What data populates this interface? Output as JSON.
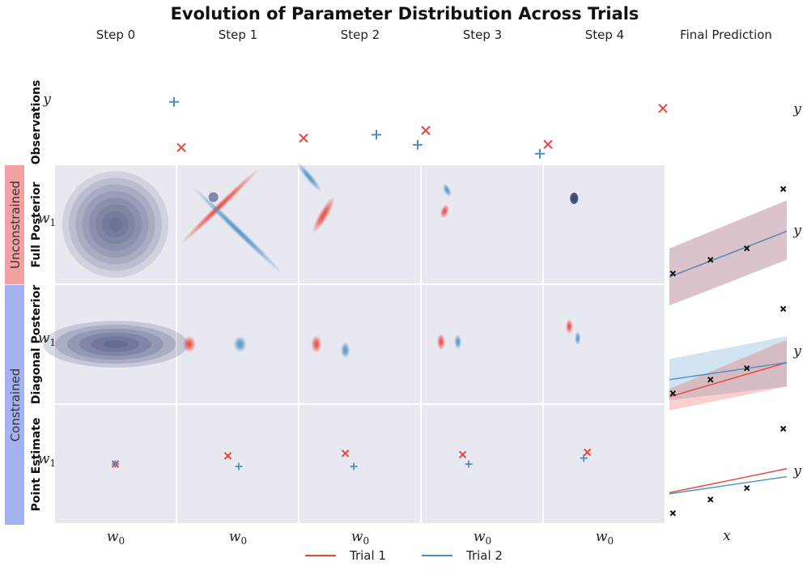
{
  "chart_data": {
    "type": "grid-of-plots",
    "title": "Evolution of Parameter Distribution Across Trials",
    "column_titles": [
      "Step 0",
      "Step 1",
      "Step 2",
      "Step 3",
      "Step 4",
      "Final Prediction"
    ],
    "row_labels": [
      "Observations",
      "Full Posterior",
      "Diagonal Posterior",
      "Point Estimate"
    ],
    "group_labels": [
      {
        "label": "Unconstrained",
        "color": "#f2a0a0"
      },
      {
        "label": "Constrained",
        "color": "#a3b3f2"
      }
    ],
    "axis_labels": {
      "param_x": "w",
      "param_x_sub": "0",
      "param_y": "w",
      "param_y_sub": "1",
      "obs_y": "y",
      "pred_x": "x",
      "pred_y": "y"
    },
    "colors": {
      "trial1": "#e8453c",
      "trial2": "#4a90c8",
      "panel_bg": "#e8e8f0",
      "prior": "#2e3a6e",
      "black": "#111111"
    },
    "legend": [
      {
        "label": "Trial 1",
        "color": "#e8453c"
      },
      {
        "label": "Trial 2",
        "color": "#4a90c8"
      }
    ],
    "observations": [
      {
        "step": 1,
        "trial1": 0.1,
        "trial2": 0.9
      },
      {
        "step": 2,
        "trial1": 0.25,
        "trial2": 0.38
      },
      {
        "step": 3,
        "trial1": 0.37,
        "trial2": 0.22
      },
      {
        "step": 4,
        "trial1": 0.15,
        "trial2": 0.08
      },
      {
        "step": 5,
        "trial1": 0.9,
        "trial2": null
      }
    ],
    "final_observations": {
      "x": [
        0.03,
        0.35,
        0.66,
        0.97
      ],
      "y": [
        0.08,
        0.2,
        0.3,
        0.82
      ]
    },
    "posteriors": {
      "full": [
        [
          {
            "trial": "prior",
            "mx": 0.5,
            "my": 0.5,
            "sx": 0.42,
            "sy": 0.42,
            "angle": 0
          }
        ],
        [
          {
            "trial": "trial1",
            "mx": 0.35,
            "my": 0.35,
            "sx": 0.92,
            "sy": 0.06,
            "angle": -44
          },
          {
            "trial": "trial2",
            "mx": 0.5,
            "my": 0.55,
            "sx": 1.05,
            "sy": 0.06,
            "angle": 44
          }
        ],
        [
          {
            "trial": "trial1",
            "mx": 0.2,
            "my": 0.42,
            "sx": 0.35,
            "sy": 0.08,
            "angle": -60
          },
          {
            "trial": "trial2",
            "mx": 0.08,
            "my": 0.1,
            "sx": 0.32,
            "sy": 0.06,
            "angle": 50
          }
        ],
        [
          {
            "trial": "trial1",
            "mx": 0.19,
            "my": 0.39,
            "sx": 0.12,
            "sy": 0.07,
            "angle": -70
          },
          {
            "trial": "trial2",
            "mx": 0.21,
            "my": 0.21,
            "sx": 0.12,
            "sy": 0.06,
            "angle": 65
          }
        ],
        [
          {
            "trial": "trial1",
            "mx": 0.25,
            "my": 0.28,
            "sx": 0.06,
            "sy": 0.06,
            "angle": 0
          },
          {
            "trial": "trial2",
            "mx": 0.25,
            "my": 0.28,
            "sx": 0.06,
            "sy": 0.06,
            "angle": 0
          }
        ]
      ],
      "diagonal": [
        [
          {
            "trial": "prior",
            "mx": 0.5,
            "my": 0.5,
            "sx": 0.6,
            "sy": 0.09,
            "angle": 0
          }
        ],
        [
          {
            "trial": "trial1",
            "mx": 0.1,
            "my": 0.5,
            "sx": 0.11,
            "sy": 0.14,
            "angle": 0
          },
          {
            "trial": "trial2",
            "mx": 0.52,
            "my": 0.5,
            "sx": 0.11,
            "sy": 0.14,
            "angle": 0
          }
        ],
        [
          {
            "trial": "trial1",
            "mx": 0.14,
            "my": 0.5,
            "sx": 0.09,
            "sy": 0.15,
            "angle": 0
          },
          {
            "trial": "trial2",
            "mx": 0.38,
            "my": 0.55,
            "sx": 0.08,
            "sy": 0.14,
            "angle": 0
          }
        ],
        [
          {
            "trial": "trial1",
            "mx": 0.16,
            "my": 0.48,
            "sx": 0.07,
            "sy": 0.14,
            "angle": 0
          },
          {
            "trial": "trial2",
            "mx": 0.3,
            "my": 0.48,
            "sx": 0.06,
            "sy": 0.13,
            "angle": 0
          }
        ],
        [
          {
            "trial": "trial1",
            "mx": 0.21,
            "my": 0.35,
            "sx": 0.06,
            "sy": 0.13,
            "angle": 0
          },
          {
            "trial": "trial2",
            "mx": 0.28,
            "my": 0.45,
            "sx": 0.05,
            "sy": 0.12,
            "angle": 0
          }
        ]
      ]
    },
    "point_estimates": [
      {
        "trial1": [
          0.5,
          0.5
        ],
        "trial2": [
          0.5,
          0.5
        ]
      },
      {
        "trial1": [
          0.42,
          0.43
        ],
        "trial2": [
          0.51,
          0.52
        ]
      },
      {
        "trial1": [
          0.38,
          0.41
        ],
        "trial2": [
          0.45,
          0.52
        ]
      },
      {
        "trial1": [
          0.34,
          0.42
        ],
        "trial2": [
          0.39,
          0.5
        ]
      },
      {
        "trial1": [
          0.36,
          0.4
        ],
        "trial2": [
          0.33,
          0.45
        ]
      }
    ],
    "final_predictions": {
      "full": {
        "trial1": {
          "line": [
            0.05,
            0.45
          ],
          "band": [
            [
              0.3,
              -0.2
            ],
            [
              0.72,
              0.2
            ]
          ]
        },
        "trial2": {
          "line": [
            0.05,
            0.45
          ],
          "band": [
            [
              0.3,
              -0.2
            ],
            [
              0.72,
              0.2
            ]
          ]
        }
      },
      "diagonal": {
        "trial1": {
          "line": [
            0.05,
            0.35
          ],
          "band": [
            [
              0.12,
              -0.07
            ],
            [
              0.55,
              0.14
            ]
          ]
        },
        "trial2": {
          "line": [
            0.2,
            0.35
          ],
          "band": [
            [
              0.38,
              0.02
            ],
            [
              0.58,
              0.14
            ]
          ]
        }
      },
      "point": {
        "trial1": {
          "line": [
            0.26,
            0.47
          ],
          "band": null
        },
        "trial2": {
          "line": [
            0.25,
            0.4
          ],
          "band": null
        }
      }
    }
  }
}
